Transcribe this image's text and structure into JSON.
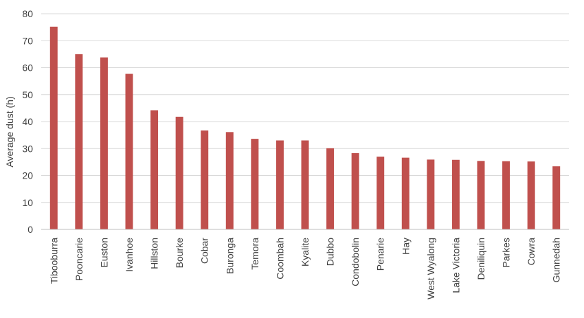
{
  "chart_data": {
    "type": "bar",
    "title": "",
    "xlabel": "",
    "ylabel": "Average dust (h)",
    "ylim": [
      0,
      80
    ],
    "yticks": [
      0,
      10,
      20,
      30,
      40,
      50,
      60,
      70,
      80
    ],
    "grid": true,
    "legend": "none",
    "bar_color": "#c0504d",
    "categories": [
      "Tibooburra",
      "Pooncarie",
      "Euston",
      "Ivanhoe",
      "Hillston",
      "Bourke",
      "Cobar",
      "Buronga",
      "Temora",
      "Coombah",
      "Kyalite",
      "Dubbo",
      "Condobolin",
      "Penarie",
      "Hay",
      "West Wyalong",
      "Lake Victoria",
      "Deniliquin",
      "Parkes",
      "Cowra",
      "Gunnedah"
    ],
    "values": [
      75.2,
      65.0,
      63.8,
      57.7,
      44.2,
      41.8,
      36.7,
      36.1,
      33.6,
      33.0,
      33.0,
      30.1,
      28.3,
      27.0,
      26.6,
      25.9,
      25.8,
      25.4,
      25.3,
      25.2,
      23.4
    ]
  }
}
